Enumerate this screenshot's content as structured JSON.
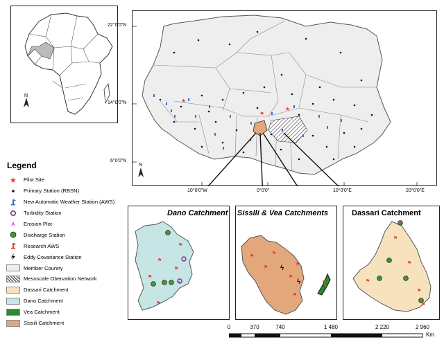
{
  "legend": {
    "title": "Legend",
    "items": [
      {
        "label": "Pilot Site",
        "symbol": "star",
        "color": "#e23b2e"
      },
      {
        "label": "Primary Station (RBSN)",
        "symbol": "dot",
        "color": "#111111"
      },
      {
        "label": "New Automatic Weather Station (AWS)",
        "symbol": "aws",
        "color": "#3a6fd1"
      },
      {
        "label": "Turbidity Station",
        "symbol": "ring",
        "color": "#7a2f8f"
      },
      {
        "label": "Erosion Plot",
        "symbol": "erosion",
        "color": "#c23fbf"
      },
      {
        "label": "Discharge Station",
        "symbol": "discharge",
        "color": "#3aa33a"
      },
      {
        "label": "Research AWS",
        "symbol": "aws",
        "color": "#e23b2e"
      },
      {
        "label": "Eddy Covariance Station",
        "symbol": "bolt",
        "color": "#111111"
      },
      {
        "label": "Member Country",
        "symbol": "fill",
        "color": "#eeeeee"
      },
      {
        "label": "Mesoscale Obervation Network",
        "symbol": "hatch",
        "color": "#ffffff"
      },
      {
        "label": "Dassari Catchment",
        "symbol": "fill",
        "color": "#f6e3bd"
      },
      {
        "label": "Dano Catchment",
        "symbol": "fill",
        "color": "#c6e6e6"
      },
      {
        "label": "Vea Catchment",
        "symbol": "fill",
        "color": "#2e8a2e"
      },
      {
        "label": "Sissili Catchment",
        "symbol": "fill",
        "color": "#e3a77c"
      }
    ]
  },
  "main_map": {
    "lat_labels": [
      "22°0'0\"N",
      "14°0'0\"N",
      "6°0'0\"N"
    ],
    "lon_labels": [
      "10°0'0\"W",
      "0°0'0\"",
      "10°0'0\"E",
      "20°0'0\"E"
    ],
    "north_label": "N"
  },
  "inset": {
    "north_label": "N"
  },
  "panels": {
    "dano": "Dano Catchment",
    "sissili_vea": "Sisslli & Vea Catchments",
    "dassari": "Dassari Catchment"
  },
  "scalebar": {
    "labels": [
      "0",
      "370",
      "740",
      "1 480",
      "2 220",
      "2 960"
    ],
    "unit": "Km"
  }
}
